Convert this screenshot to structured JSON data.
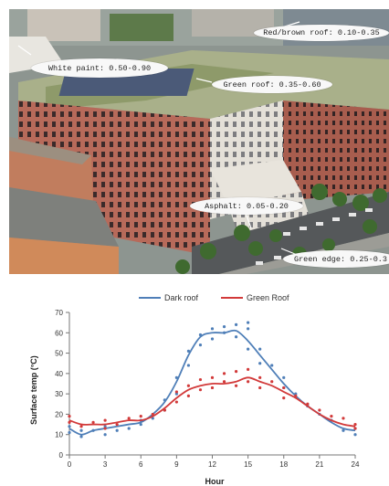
{
  "photo": {
    "callouts": [
      {
        "id": "red-brown-roof",
        "text": "Red/brown roof: 0.10-0.35"
      },
      {
        "id": "white-paint",
        "text": "White paint: 0.50-0.90"
      },
      {
        "id": "green-roof",
        "text": "Green roof: 0.35-0.60"
      },
      {
        "id": "asphalt",
        "text": "Asphalt: 0.05-0.20"
      },
      {
        "id": "green-edge",
        "text": "Green edge: 0.25-0.3"
      }
    ]
  },
  "chart_data": {
    "type": "line",
    "title": "",
    "xlabel": "Hour",
    "ylabel": "Surface temp (°C)",
    "xlim": [
      0,
      24
    ],
    "ylim": [
      0,
      70
    ],
    "xticks": [
      0,
      3,
      6,
      9,
      12,
      15,
      18,
      21,
      24
    ],
    "yticks": [
      0,
      10,
      20,
      30,
      40,
      50,
      60,
      70
    ],
    "grid": false,
    "legend_position": "top-center",
    "series": [
      {
        "name": "Dark roof",
        "color": "#4f7fb8",
        "line": {
          "x": [
            0,
            1,
            2,
            3,
            4,
            5,
            6,
            7,
            8,
            9,
            10,
            11,
            12,
            13,
            14,
            15,
            16,
            17,
            18,
            19,
            20,
            21,
            22,
            23,
            24
          ],
          "y": [
            13,
            10,
            12,
            13,
            14,
            15,
            16,
            20,
            26,
            36,
            49,
            58,
            60,
            60,
            61,
            56,
            49,
            42,
            35,
            29,
            24,
            20,
            16,
            13,
            12
          ]
        },
        "points": {
          "x": [
            0,
            0,
            1,
            1,
            2,
            3,
            3,
            4,
            5,
            6,
            6,
            7,
            8,
            8,
            9,
            9,
            10,
            10,
            11,
            11,
            12,
            12,
            13,
            13,
            14,
            14,
            15,
            15,
            15,
            16,
            16,
            17,
            18,
            18,
            19,
            20,
            21,
            22,
            23,
            24,
            24
          ],
          "y": [
            11,
            14,
            9,
            12,
            12,
            10,
            14,
            12,
            13,
            15,
            17,
            18,
            22,
            27,
            30,
            38,
            44,
            51,
            54,
            59,
            62,
            57,
            60,
            63,
            58,
            64,
            52,
            62,
            65,
            45,
            52,
            44,
            33,
            38,
            30,
            24,
            20,
            17,
            12,
            10,
            13
          ]
        }
      },
      {
        "name": "Green Roof",
        "color": "#d23a3a",
        "line": {
          "x": [
            0,
            1,
            2,
            3,
            4,
            5,
            6,
            7,
            8,
            9,
            10,
            11,
            12,
            13,
            14,
            15,
            16,
            17,
            18,
            19,
            20,
            21,
            22,
            23,
            24
          ],
          "y": [
            17,
            15,
            15,
            15,
            16,
            17,
            17,
            19,
            23,
            28,
            32,
            34,
            35,
            35,
            36,
            38,
            36,
            34,
            31,
            28,
            24,
            20,
            17,
            15,
            14
          ]
        },
        "points": {
          "x": [
            0,
            0,
            1,
            2,
            3,
            3,
            4,
            5,
            6,
            7,
            8,
            9,
            9,
            10,
            10,
            11,
            11,
            12,
            12,
            13,
            13,
            14,
            14,
            15,
            15,
            16,
            16,
            17,
            18,
            18,
            19,
            20,
            21,
            22,
            23,
            24,
            24
          ],
          "y": [
            16,
            19,
            14,
            16,
            13,
            17,
            15,
            18,
            19,
            20,
            22,
            26,
            31,
            29,
            34,
            32,
            37,
            33,
            38,
            36,
            40,
            34,
            41,
            36,
            42,
            33,
            38,
            36,
            28,
            33,
            29,
            25,
            22,
            19,
            18,
            15,
            13
          ]
        }
      }
    ]
  }
}
